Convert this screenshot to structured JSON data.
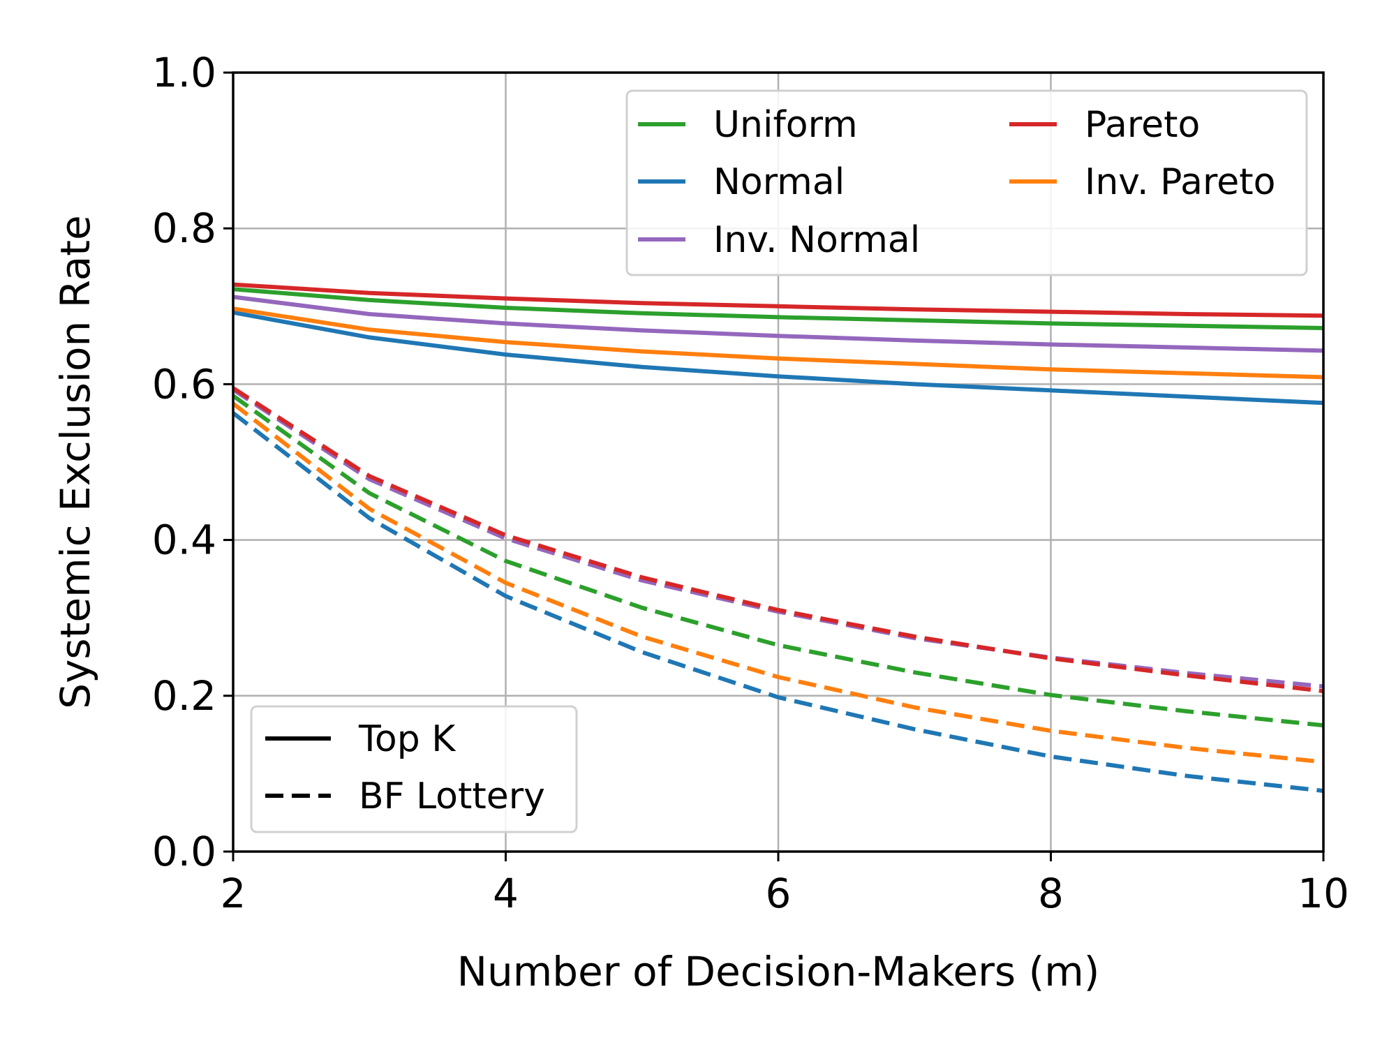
{
  "chart_data": {
    "type": "line",
    "xlabel": "Number of Decision-Makers (m)",
    "ylabel": "Systemic Exclusion Rate",
    "xlim": [
      2,
      10
    ],
    "ylim": [
      0.0,
      1.0
    ],
    "x_ticks": [
      "2",
      "4",
      "6",
      "8",
      "10"
    ],
    "y_ticks": [
      "0.0",
      "0.2",
      "0.4",
      "0.6",
      "0.8",
      "1.0"
    ],
    "grid": true,
    "x": [
      2,
      3,
      4,
      5,
      6,
      7,
      8,
      9,
      10
    ],
    "series": [
      {
        "name": "Uniform",
        "method": "Top K",
        "color": "#2ca02c",
        "values": [
          0.722,
          0.708,
          0.698,
          0.691,
          0.686,
          0.682,
          0.678,
          0.675,
          0.672
        ]
      },
      {
        "name": "Normal",
        "method": "Top K",
        "color": "#1f77b4",
        "values": [
          0.692,
          0.66,
          0.638,
          0.622,
          0.61,
          0.6,
          0.592,
          0.584,
          0.576
        ]
      },
      {
        "name": "Inv. Normal",
        "method": "Top K",
        "color": "#9467bd",
        "values": [
          0.712,
          0.69,
          0.678,
          0.669,
          0.662,
          0.656,
          0.651,
          0.647,
          0.643
        ]
      },
      {
        "name": "Pareto",
        "method": "Top K",
        "color": "#d62728",
        "values": [
          0.728,
          0.717,
          0.71,
          0.704,
          0.7,
          0.696,
          0.693,
          0.69,
          0.688
        ]
      },
      {
        "name": "Inv. Pareto",
        "method": "Top K",
        "color": "#ff7f0e",
        "values": [
          0.697,
          0.67,
          0.654,
          0.642,
          0.633,
          0.626,
          0.619,
          0.614,
          0.609
        ]
      },
      {
        "name": "Uniform",
        "method": "BF Lottery",
        "color": "#2ca02c",
        "values": [
          0.585,
          0.46,
          0.373,
          0.313,
          0.265,
          0.23,
          0.201,
          0.18,
          0.162
        ]
      },
      {
        "name": "Normal",
        "method": "BF Lottery",
        "color": "#1f77b4",
        "values": [
          0.563,
          0.428,
          0.328,
          0.256,
          0.198,
          0.157,
          0.122,
          0.097,
          0.078
        ]
      },
      {
        "name": "Inv. Normal",
        "method": "BF Lottery",
        "color": "#9467bd",
        "values": [
          0.593,
          0.478,
          0.402,
          0.348,
          0.308,
          0.274,
          0.249,
          0.229,
          0.212
        ]
      },
      {
        "name": "Pareto",
        "method": "BF Lottery",
        "color": "#d62728",
        "values": [
          0.595,
          0.482,
          0.406,
          0.352,
          0.31,
          0.276,
          0.248,
          0.226,
          0.206
        ]
      },
      {
        "name": "Inv. Pareto",
        "method": "BF Lottery",
        "color": "#ff7f0e",
        "values": [
          0.575,
          0.44,
          0.345,
          0.276,
          0.224,
          0.185,
          0.155,
          0.133,
          0.115
        ]
      }
    ],
    "legend_distributions": [
      {
        "label": "Uniform",
        "color": "#2ca02c"
      },
      {
        "label": "Normal",
        "color": "#1f77b4"
      },
      {
        "label": "Inv. Normal",
        "color": "#9467bd"
      },
      {
        "label": "Pareto",
        "color": "#d62728"
      },
      {
        "label": "Inv. Pareto",
        "color": "#ff7f0e"
      }
    ],
    "legend_distributions_placement": "top-right",
    "legend_methods": [
      {
        "label": "Top K",
        "style": "solid"
      },
      {
        "label": "BF Lottery",
        "style": "dashed"
      }
    ],
    "legend_methods_placement": "bottom-left"
  }
}
